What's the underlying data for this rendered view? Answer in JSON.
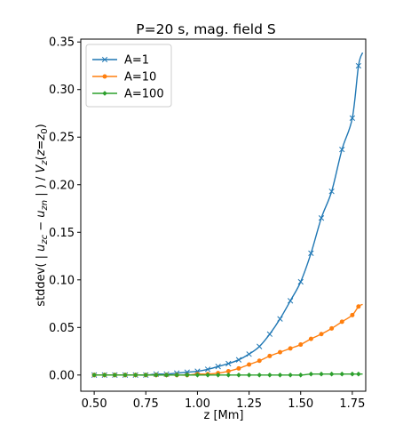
{
  "chart_data": {
    "type": "line",
    "title": "P=20 s, mag. field S",
    "xlabel": "z [Mm]",
    "ylabel_parts": {
      "prefix": "stddev( | ",
      "num_a": "u",
      "num_a_sub": "zc",
      "minus": " − ",
      "num_b": "u",
      "num_b_sub": "zn",
      "middle": " | ) / ",
      "den": "V",
      "den_sub": "z",
      "den_arg_open": "(",
      "den_arg": "z=z",
      "den_arg_sub": "0",
      "den_arg_close": ")"
    },
    "xlim": [
      0.435,
      1.815
    ],
    "ylim": [
      -0.017,
      0.353
    ],
    "xticks": [
      0.5,
      0.75,
      1.0,
      1.25,
      1.5,
      1.75
    ],
    "xtick_labels": [
      "0.50",
      "0.75",
      "1.00",
      "1.25",
      "1.50",
      "1.75"
    ],
    "yticks": [
      0.0,
      0.05,
      0.1,
      0.15,
      0.2,
      0.25,
      0.3,
      0.35
    ],
    "ytick_labels": [
      "0.00",
      "0.05",
      "0.10",
      "0.15",
      "0.20",
      "0.25",
      "0.30",
      "0.35"
    ],
    "legend_position": "top-left",
    "grid": false,
    "series": [
      {
        "name": "A=1",
        "color": "#1f77b4",
        "marker": "x",
        "x": [
          0.5,
          0.55,
          0.6,
          0.65,
          0.7,
          0.75,
          0.8,
          0.85,
          0.9,
          0.95,
          1.0,
          1.05,
          1.1,
          1.15,
          1.2,
          1.25,
          1.3,
          1.35,
          1.4,
          1.45,
          1.5,
          1.55,
          1.6,
          1.65,
          1.7,
          1.75,
          1.78
        ],
        "y": [
          0.0,
          0.0,
          0.0,
          0.0,
          0.0,
          0.0,
          0.001,
          0.001,
          0.002,
          0.003,
          0.004,
          0.006,
          0.009,
          0.012,
          0.016,
          0.022,
          0.03,
          0.043,
          0.059,
          0.078,
          0.098,
          0.128,
          0.165,
          0.193,
          0.237,
          0.27,
          0.325
        ]
      },
      {
        "name": "A=10",
        "color": "#ff7f0e",
        "marker": "o",
        "x": [
          0.5,
          0.55,
          0.6,
          0.65,
          0.7,
          0.75,
          0.8,
          0.85,
          0.9,
          0.95,
          1.0,
          1.05,
          1.1,
          1.15,
          1.2,
          1.25,
          1.3,
          1.35,
          1.4,
          1.45,
          1.5,
          1.55,
          1.6,
          1.65,
          1.7,
          1.75,
          1.78
        ],
        "y": [
          0.0,
          0.0,
          0.0,
          0.0,
          0.0,
          0.0,
          0.0,
          0.0,
          0.0,
          0.0,
          0.001,
          0.001,
          0.002,
          0.004,
          0.007,
          0.011,
          0.015,
          0.02,
          0.024,
          0.028,
          0.032,
          0.038,
          0.043,
          0.049,
          0.056,
          0.063,
          0.072
        ]
      },
      {
        "name": "A=100",
        "color": "#2ca02c",
        "marker": "D",
        "x": [
          0.5,
          0.55,
          0.6,
          0.65,
          0.7,
          0.75,
          0.8,
          0.85,
          0.9,
          0.95,
          1.0,
          1.05,
          1.1,
          1.15,
          1.2,
          1.25,
          1.3,
          1.35,
          1.4,
          1.45,
          1.5,
          1.55,
          1.6,
          1.65,
          1.7,
          1.75,
          1.78
        ],
        "y": [
          0.0,
          0.0,
          0.0,
          0.0,
          0.0,
          0.0,
          0.0,
          0.0,
          0.0,
          0.0,
          0.0,
          0.0,
          0.0,
          0.0,
          0.0,
          0.0,
          0.0,
          0.0,
          0.0,
          0.0,
          0.0,
          0.001,
          0.001,
          0.001,
          0.001,
          0.001,
          0.001
        ]
      }
    ]
  }
}
